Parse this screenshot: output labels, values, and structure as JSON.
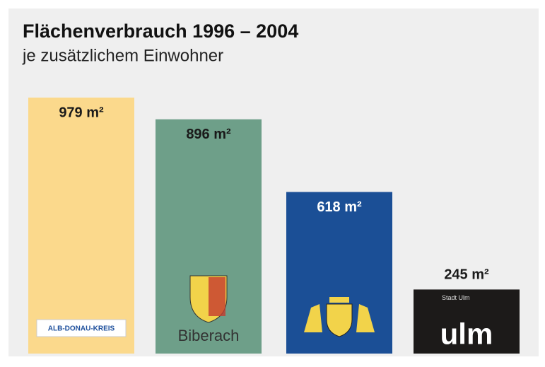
{
  "chart_data": {
    "type": "bar",
    "title": "Flächenverbrauch 1996 – 2004",
    "subtitle": "je zusätzlichem Einwohner",
    "categories": [
      "ALB-DONAU-KREIS",
      "Biberach",
      null,
      "ulm"
    ],
    "values": [
      979,
      896,
      618,
      245
    ],
    "value_labels": [
      "979 m²",
      "896 m²",
      "618 m²",
      "245 m²"
    ],
    "colors": [
      "#fbd98c",
      "#6e9f89",
      "#1b4f96",
      "#1c1a19"
    ],
    "annotations": [
      "Stadt Ulm"
    ]
  }
}
